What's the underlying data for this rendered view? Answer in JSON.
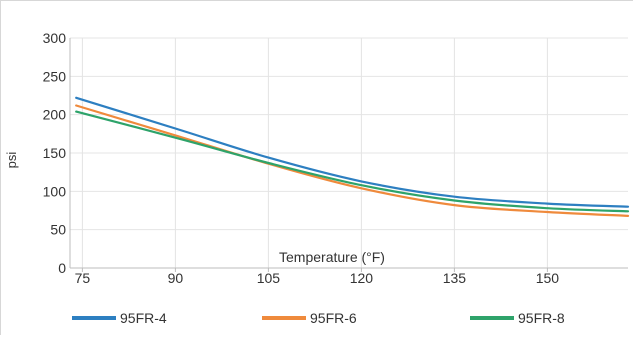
{
  "chart_data": {
    "type": "line",
    "xlabel": "Temperature (°F)",
    "ylabel": "psi",
    "xlim": [
      73,
      163
    ],
    "ylim": [
      0,
      300
    ],
    "x_ticks": [
      75,
      90,
      105,
      120,
      135,
      150
    ],
    "y_ticks": [
      0,
      50,
      100,
      150,
      200,
      250,
      300
    ],
    "grid": true,
    "legend_position": "bottom",
    "x": [
      74,
      90,
      105,
      120,
      135,
      150,
      163
    ],
    "series": [
      {
        "name": "95FR-4",
        "color": "#2d7fc1",
        "values": [
          222,
          182,
          144,
          113,
          93,
          84,
          80
        ]
      },
      {
        "name": "95FR-6",
        "color": "#ef8a3c",
        "values": [
          212,
          173,
          136,
          104,
          82,
          73,
          68
        ]
      },
      {
        "name": "95FR-8",
        "color": "#2ea36a",
        "values": [
          204,
          170,
          137,
          108,
          88,
          78,
          74
        ]
      }
    ]
  }
}
